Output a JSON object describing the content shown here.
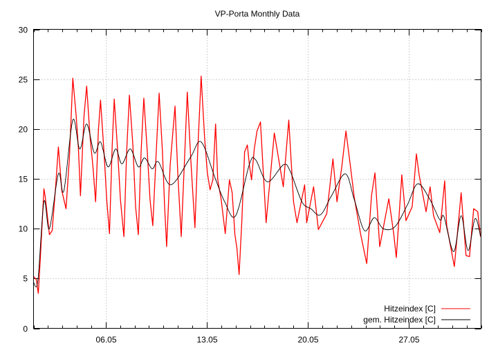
{
  "chart_data": {
    "type": "line",
    "title": "VP-Porta Monthly Data",
    "xlabel": "",
    "ylabel": "",
    "xlim": [
      1,
      32
    ],
    "ylim": [
      0,
      30
    ],
    "grid": true,
    "legend_position": "bottom-right",
    "y_ticks": [
      0,
      5,
      10,
      15,
      20,
      25,
      30
    ],
    "x_ticks": [
      {
        "day": 6,
        "label": "06.05"
      },
      {
        "day": 13,
        "label": "13.05"
      },
      {
        "day": 20,
        "label": "20.05"
      },
      {
        "day": 27,
        "label": "27.05"
      }
    ],
    "x_unit": "day of month (May)",
    "series": [
      {
        "name": "Hitzeindex [C]",
        "color": "#ff0000",
        "x": [
          1.0,
          1.19,
          1.33,
          1.48,
          1.72,
          1.81,
          2.1,
          2.29,
          2.53,
          2.72,
          2.96,
          3.25,
          3.48,
          3.72,
          3.96,
          4.11,
          4.25,
          4.49,
          4.68,
          4.92,
          5.11,
          5.3,
          5.49,
          5.64,
          5.88,
          6.07,
          6.26,
          6.45,
          6.59,
          6.83,
          7.02,
          7.26,
          7.45,
          7.64,
          7.88,
          8.07,
          8.26,
          8.45,
          8.64,
          8.88,
          9.07,
          9.26,
          9.5,
          9.7,
          9.93,
          10.08,
          10.22,
          10.46,
          10.8,
          10.99,
          11.23,
          11.46,
          11.65,
          11.89,
          12.18,
          12.37,
          12.61,
          12.85,
          13.04,
          13.23,
          13.42,
          13.61,
          13.76,
          14.0,
          14.28,
          14.57,
          14.76,
          14.95,
          15.09,
          15.24,
          15.43,
          15.62,
          15.81,
          15.96,
          16.1,
          16.29,
          16.48,
          16.72,
          17.11,
          17.68,
          18.3,
          18.68,
          19.01,
          19.25,
          19.78,
          19.92,
          20.4,
          20.73,
          21.31,
          21.74,
          22.02,
          22.36,
          22.64,
          22.93,
          23.22,
          23.65,
          24.08,
          24.41,
          24.65,
          24.98,
          25.61,
          25.94,
          26.13,
          26.51,
          26.8,
          27.23,
          27.52,
          27.71,
          28.19,
          28.47,
          28.71,
          29.14,
          29.48,
          29.62,
          30.15,
          30.62,
          30.96,
          31.2,
          31.49,
          31.77,
          31.96
        ],
        "y": [
          5.2,
          4.9,
          3.5,
          7.3,
          14.0,
          13.2,
          9.4,
          9.8,
          14.2,
          18.2,
          13.8,
          12.0,
          17.0,
          25.1,
          21.2,
          18.0,
          13.3,
          21.2,
          24.3,
          19.1,
          16.3,
          12.7,
          19.8,
          22.9,
          17.7,
          12.9,
          9.5,
          18.4,
          23.0,
          17.7,
          12.9,
          9.2,
          17.7,
          23.4,
          18.4,
          12.2,
          9.4,
          17.7,
          23.1,
          17.7,
          12.9,
          10.3,
          17.7,
          23.6,
          17.7,
          12.2,
          8.2,
          16.3,
          22.3,
          15.6,
          9.2,
          17.0,
          23.7,
          17.0,
          10.1,
          17.7,
          25.3,
          19.1,
          15.6,
          13.9,
          14.9,
          20.5,
          14.9,
          12.9,
          9.5,
          14.9,
          13.6,
          9.4,
          8.0,
          5.4,
          10.8,
          17.7,
          18.4,
          16.3,
          14.9,
          18.0,
          19.8,
          20.7,
          10.6,
          19.6,
          14.2,
          20.9,
          12.7,
          10.6,
          14.4,
          10.6,
          14.2,
          9.9,
          11.5,
          17.0,
          12.7,
          16.3,
          19.8,
          16.5,
          13.1,
          9.5,
          6.5,
          13.3,
          15.6,
          8.2,
          13.0,
          9.6,
          7.1,
          15.4,
          10.8,
          12.2,
          17.5,
          15.4,
          11.7,
          14.2,
          11.3,
          9.6,
          14.8,
          10.3,
          6.2,
          13.6,
          7.3,
          7.2,
          12.0,
          11.7,
          9.2
        ]
      },
      {
        "name": "gem. Hitzeindex [C]",
        "color": "#000000",
        "x": [
          1.0,
          1.3,
          1.72,
          2.1,
          2.72,
          3.1,
          3.72,
          4.2,
          4.68,
          5.21,
          5.64,
          6.16,
          6.69,
          7.12,
          7.7,
          8.26,
          8.69,
          9.22,
          9.65,
          10.51,
          11.85,
          12.61,
          13.57,
          14.24,
          15.0,
          15.96,
          16.39,
          17.2,
          18.3,
          18.77,
          19.59,
          20.21,
          20.88,
          21.64,
          22.6,
          23.22,
          23.93,
          24.6,
          25.22,
          26.04,
          26.9,
          27.61,
          28.43,
          29.14,
          29.43,
          30.1,
          30.62,
          31.1,
          31.58,
          31.96
        ],
        "y": [
          4.6,
          4.8,
          12.7,
          10.0,
          15.5,
          13.8,
          20.9,
          18.0,
          20.5,
          17.6,
          18.7,
          16.2,
          18.0,
          16.5,
          18.0,
          16.2,
          17.1,
          16.0,
          16.7,
          14.4,
          17.1,
          18.7,
          15.1,
          12.7,
          11.3,
          16.5,
          16.9,
          14.7,
          16.4,
          15.8,
          12.7,
          12.0,
          11.4,
          13.3,
          15.5,
          12.9,
          9.8,
          11.1,
          10.0,
          10.2,
          12.4,
          14.5,
          13.0,
          10.9,
          11.2,
          7.7,
          11.3,
          7.8,
          11.0,
          9.3
        ]
      }
    ]
  }
}
